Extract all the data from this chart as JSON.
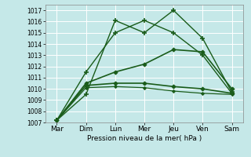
{
  "x_labels": [
    "Mar",
    "Dim",
    "Lun",
    "Mer",
    "Jeu",
    "Ven",
    "Sam"
  ],
  "x_positions": [
    0,
    1,
    2,
    3,
    4,
    5,
    6
  ],
  "xlabel": "Pression niveau de la mer( hPa )",
  "ylim": [
    1007,
    1017.5
  ],
  "yticks": [
    1007,
    1008,
    1009,
    1010,
    1011,
    1012,
    1013,
    1014,
    1015,
    1016,
    1017
  ],
  "bg_color": "#c5e8e8",
  "line_color": "#1a5c1a",
  "grid_color": "#aad4d4",
  "lines": [
    {
      "y": [
        1007.2,
        1009.5,
        1016.1,
        1015.0,
        1017.0,
        1014.5,
        1009.7
      ],
      "ls": "solid",
      "marker": "+",
      "ms": 5,
      "lw": 1.0,
      "mew": 1.2
    },
    {
      "y": [
        1007.2,
        1011.5,
        1015.0,
        1016.1,
        1015.0,
        1013.0,
        1009.6
      ],
      "ls": "solid",
      "marker": "+",
      "ms": 5,
      "lw": 1.0,
      "mew": 1.2
    },
    {
      "y": [
        1007.2,
        1010.5,
        1011.5,
        1012.2,
        1013.5,
        1013.3,
        1010.0
      ],
      "ls": "solid",
      "marker": "D",
      "ms": 2.5,
      "lw": 1.2,
      "mew": 0.8
    },
    {
      "y": [
        1007.2,
        1010.3,
        1010.5,
        1010.5,
        1010.2,
        1010.0,
        1009.6
      ],
      "ls": "solid",
      "marker": "D",
      "ms": 2.5,
      "lw": 1.2,
      "mew": 0.8
    },
    {
      "y": [
        1007.2,
        1010.1,
        1010.2,
        1010.1,
        1009.8,
        1009.6,
        1009.5
      ],
      "ls": "solid",
      "marker": "D",
      "ms": 2.0,
      "lw": 0.9,
      "mew": 0.7
    }
  ]
}
